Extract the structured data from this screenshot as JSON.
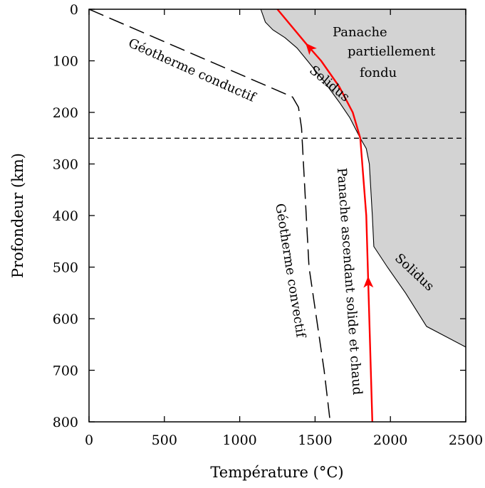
{
  "chart_data": {
    "type": "line",
    "title": "",
    "xlabel": "Température (°C)",
    "ylabel": "Profondeur (km)",
    "xlim": [
      0,
      2500
    ],
    "ylim": [
      800,
      0
    ],
    "y_inverted": true,
    "grid": false,
    "xticks": [
      0,
      500,
      1000,
      1500,
      2000,
      2500
    ],
    "xtick_labels": [
      "0",
      "500",
      "1000",
      "1500",
      "2000",
      "2500"
    ],
    "yticks": [
      0,
      100,
      200,
      300,
      400,
      500,
      600,
      700,
      800
    ],
    "ytick_labels": [
      "0",
      "100",
      "200",
      "300",
      "400",
      "500",
      "600",
      "700",
      "800"
    ],
    "series": [
      {
        "role": "conductive-geotherm",
        "style": "long-dash",
        "color": "#000000",
        "points": [
          [
            0,
            0
          ],
          [
            1350,
            170
          ]
        ]
      },
      {
        "role": "convective-geotherm",
        "style": "long-dash",
        "color": "#000000",
        "points": [
          [
            1350,
            170
          ],
          [
            1390,
            190
          ],
          [
            1410,
            230
          ],
          [
            1460,
            500
          ],
          [
            1560,
            700
          ],
          [
            1600,
            800
          ]
        ]
      },
      {
        "role": "solidus",
        "style": "solid",
        "color": "#000000",
        "fill": "#d3d3d3",
        "points": [
          [
            1140,
            0
          ],
          [
            1170,
            25
          ],
          [
            1220,
            40
          ],
          [
            1300,
            55
          ],
          [
            1380,
            75
          ],
          [
            1450,
            100
          ],
          [
            1560,
            140
          ],
          [
            1660,
            180
          ],
          [
            1730,
            210
          ],
          [
            1800,
            250
          ],
          [
            1840,
            270
          ],
          [
            1860,
            300
          ],
          [
            1880,
            400
          ],
          [
            1890,
            460
          ],
          [
            1980,
            500
          ],
          [
            2100,
            550
          ],
          [
            2240,
            615
          ],
          [
            2500,
            655
          ]
        ]
      },
      {
        "role": "plume-path",
        "style": "solid",
        "color": "#ff0000",
        "points": [
          [
            1880,
            800
          ],
          [
            1840,
            400
          ],
          [
            1800,
            250
          ],
          [
            1750,
            200
          ],
          [
            1660,
            150
          ],
          [
            1540,
            100
          ],
          [
            1450,
            70
          ],
          [
            1250,
            0
          ]
        ],
        "arrows_at_y": [
          530,
          75
        ]
      },
      {
        "role": "threshold-line",
        "style": "short-dash",
        "color": "#000000",
        "points": [
          [
            0,
            250
          ],
          [
            2500,
            250
          ]
        ]
      }
    ],
    "annotations": [
      {
        "text": "Panache",
        "x": 1900,
        "y": 45
      },
      {
        "text": "partiellement",
        "x": 2080,
        "y": 83
      },
      {
        "text": "fondu",
        "x": 1950,
        "y": 125
      },
      {
        "text": "Géotherme conductif",
        "x": 720,
        "y": 82
      },
      {
        "text": "Solidus",
        "x": 1610,
        "y": 145
      },
      {
        "text": "Géotherme convectif",
        "x": 1370,
        "y": 510
      },
      {
        "text": "Panache ascendant solide et chaud",
        "x": 1780,
        "y": 530
      },
      {
        "text": "Solidus",
        "x": 2220,
        "y": 555
      }
    ]
  },
  "labels": {
    "xlabel": "Température (°C)",
    "ylabel": "Profondeur (km)",
    "panache_line1": "Panache",
    "panache_line2": "partiellement",
    "panache_line3": "fondu",
    "geotherme_conductif": "Géotherme conductif",
    "solidus_upper": "Solidus",
    "geotherme_convectif": "Géotherme convectif",
    "panache_ascendant": "Panache ascendant solide et chaud",
    "solidus_lower": "Solidus"
  },
  "colors": {
    "solidus_fill": "#d3d3d3",
    "plume": "#ff0000",
    "axis": "#000000"
  }
}
